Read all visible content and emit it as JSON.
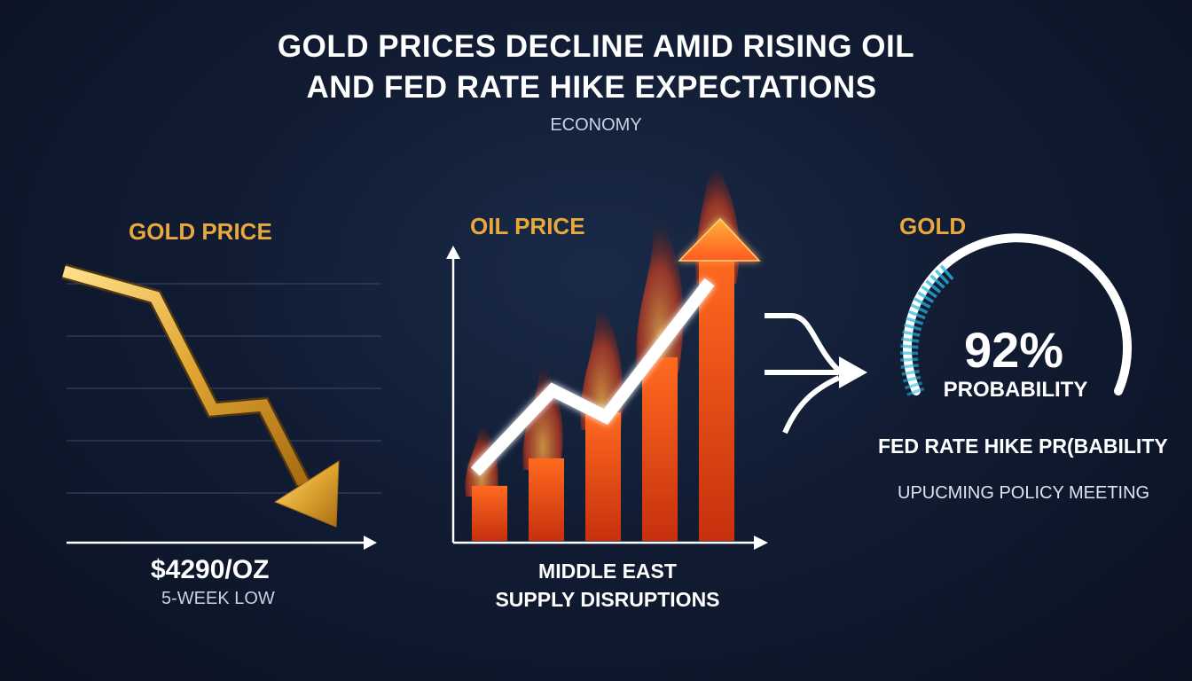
{
  "header": {
    "title_line1": "GOLD PRICES DECLINE AMID RISING OIL",
    "title_line2": "AND FED RATE HIKE EXPECTATIONS",
    "category": "ECONOMY"
  },
  "gold_panel": {
    "label": "GOLD PRICE",
    "value": "$4290/OZ",
    "sublabel": "5-WEEK LOW",
    "trend": "down",
    "color": "#e9a83c"
  },
  "oil_panel": {
    "label": "OIL PRICE",
    "caption_line1": "MIDDLE EAST",
    "caption_line2": "SUPPLY DISRUPTIONS",
    "trend": "up",
    "bar_levels": [
      0.18,
      0.27,
      0.42,
      0.6,
      0.93
    ],
    "color": "#ff5a1f"
  },
  "fed_panel": {
    "label": "GOLD",
    "probability_value": "92%",
    "probability_label": "PROBABILITY",
    "title": "FED RATE HIKE PR(BABILITY",
    "subtitle": "UPUCMING POLICY MEETING",
    "gauge_fraction": 0.92,
    "accent_color": "#29b6e0"
  },
  "icons": {
    "gold_arrow": "down-trend-arrow-icon",
    "oil_arrow": "up-trend-arrow-icon",
    "merge_arrow": "merge-arrow-icon",
    "flames": "flame-icon"
  }
}
